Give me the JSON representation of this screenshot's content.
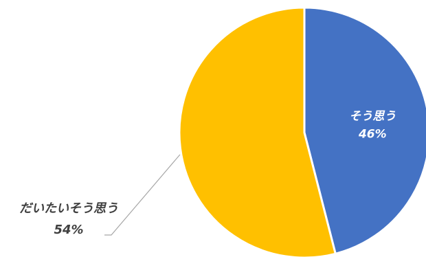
{
  "chart_data": {
    "type": "pie",
    "start_angle_deg": 0,
    "direction": "clockwise",
    "slices": [
      {
        "label": "そう思う",
        "value": 46,
        "value_label": "46%",
        "color": "#4472C4",
        "label_color": "#ffffff",
        "label_position": "inside"
      },
      {
        "label": "だいたいそう思う",
        "value": 54,
        "value_label": "54%",
        "color": "#FFC000",
        "label_color": "#404040",
        "label_position": "outside-left-with-leader"
      }
    ],
    "slice_border_color": "#ffffff",
    "legend": "none",
    "title": ""
  }
}
